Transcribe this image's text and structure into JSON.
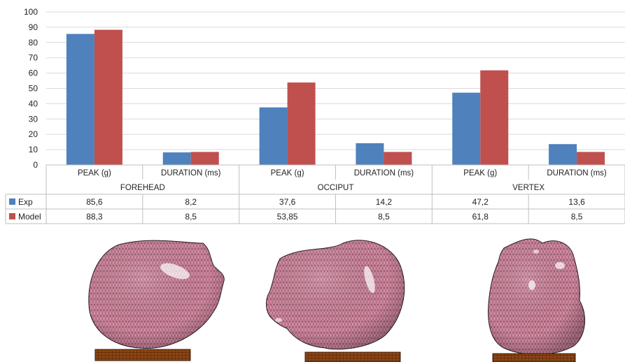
{
  "chart_data": {
    "type": "bar",
    "ylim": [
      0,
      100
    ],
    "yticks": [
      0,
      10,
      20,
      30,
      40,
      50,
      60,
      70,
      80,
      90,
      100
    ],
    "groups": [
      {
        "name": "FOREHEAD",
        "categories": [
          "PEAK (g)",
          "DURATION (ms)"
        ]
      },
      {
        "name": "OCCIPUT",
        "categories": [
          "PEAK (g)",
          "DURATION (ms)"
        ]
      },
      {
        "name": "VERTEX",
        "categories": [
          "PEAK (g)",
          "DURATION (ms)"
        ]
      }
    ],
    "series": [
      {
        "name": "Exp",
        "color": "#4F81BD",
        "values": [
          85.6,
          8.2,
          37.6,
          14.2,
          47.2,
          13.6
        ],
        "labels": [
          "85,6",
          "8,2",
          "37,6",
          "14,2",
          "47,2",
          "13,6"
        ]
      },
      {
        "name": "Model",
        "color": "#C0504D",
        "values": [
          88.3,
          8.5,
          53.85,
          8.5,
          61.8,
          8.5
        ],
        "labels": [
          "88,3",
          "8,5",
          "53,85",
          "8,5",
          "61,8",
          "8,5"
        ]
      }
    ],
    "grid": true
  },
  "colors": {
    "mesh": "#D98FA6",
    "mesh_line": "#5a3040",
    "plate": "#8B4513"
  },
  "icons": [
    "head-mesh-forehead",
    "head-mesh-occiput",
    "head-mesh-vertex"
  ]
}
